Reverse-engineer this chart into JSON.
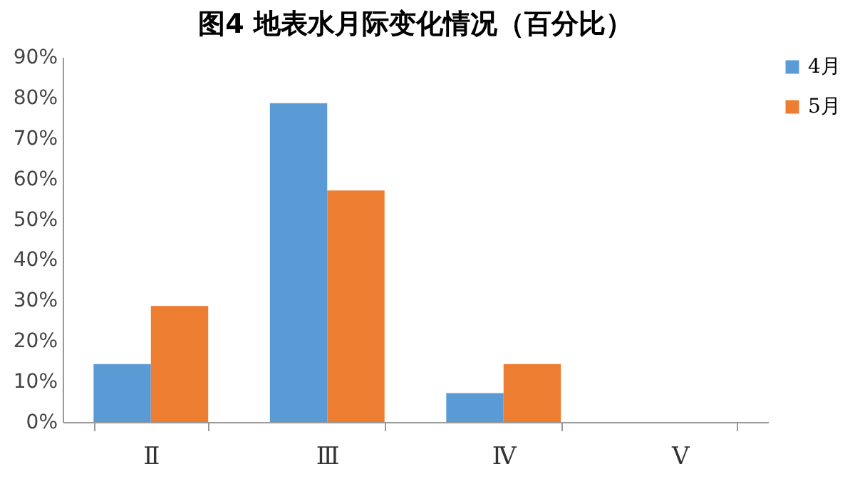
{
  "chart_data": {
    "type": "bar",
    "title": "图4  地表水月际变化情况（百分比）",
    "categories": [
      "Ⅱ",
      "Ⅲ",
      "Ⅳ",
      "Ⅴ"
    ],
    "series": [
      {
        "name": "4月",
        "color": "#5b9bd5",
        "values": [
          14.3,
          78.6,
          7.1,
          0
        ]
      },
      {
        "name": "5月",
        "color": "#ed7d31",
        "values": [
          28.6,
          57.1,
          14.3,
          0
        ]
      }
    ],
    "ylim": [
      0,
      90
    ],
    "yticks": [
      {
        "value": 0,
        "label": "0%"
      },
      {
        "value": 10,
        "label": "10%"
      },
      {
        "value": 20,
        "label": "20%"
      },
      {
        "value": 30,
        "label": "30%"
      },
      {
        "value": 40,
        "label": "40%"
      },
      {
        "value": 50,
        "label": "50%"
      },
      {
        "value": 60,
        "label": "60%"
      },
      {
        "value": 70,
        "label": "70%"
      },
      {
        "value": 80,
        "label": "80%"
      },
      {
        "value": 90,
        "label": "90%"
      }
    ],
    "grid": false,
    "legend": "right"
  }
}
